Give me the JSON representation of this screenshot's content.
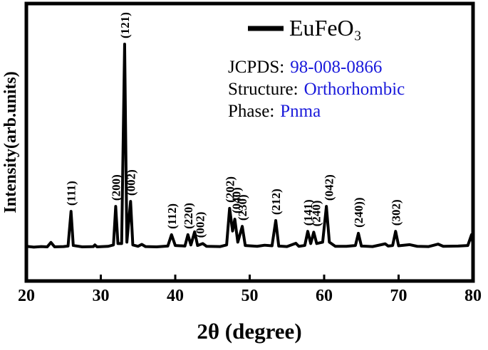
{
  "chart_data": {
    "type": "line",
    "x_label": "2θ (degree)",
    "y_label": "Intensity(arb.units)",
    "xlim": [
      20,
      80
    ],
    "ylim": [
      0,
      100
    ],
    "xticks": [
      20,
      30,
      40,
      50,
      60,
      70,
      80
    ],
    "x": [
      20.0,
      21.0,
      22.0,
      22.8,
      23.3,
      23.8,
      25.0,
      25.6,
      26.0,
      26.3,
      27.5,
      29.0,
      29.2,
      29.5,
      31.0,
      31.7,
      32.0,
      32.3,
      32.8,
      33.2,
      33.5,
      33.7,
      34.0,
      34.3,
      35.0,
      35.5,
      36.0,
      37.5,
      39.0,
      39.5,
      40.0,
      41.3,
      41.7,
      42.1,
      42.6,
      43.0,
      43.7,
      44.2,
      46.0,
      46.9,
      47.3,
      47.7,
      48.0,
      48.4,
      49.0,
      49.4,
      51.0,
      52.0,
      53.0,
      53.5,
      53.9,
      55.0,
      56.2,
      56.6,
      57.4,
      57.8,
      58.2,
      58.6,
      59.0,
      59.8,
      60.3,
      60.7,
      61.5,
      63.0,
      64.2,
      64.6,
      65.0,
      66.5,
      68.2,
      68.6,
      69.2,
      69.6,
      70.0,
      71.5,
      72.5,
      74.0,
      75.3,
      76.0,
      78.0,
      79.3,
      79.8,
      80.0
    ],
    "series": [
      {
        "name": "EuFeO₃",
        "color": "#000000",
        "values": [
          12.5,
          12.2,
          12.4,
          12.3,
          13.9,
          12.3,
          12.4,
          12.6,
          25.1,
          12.8,
          12.3,
          12.4,
          13.0,
          12.3,
          12.5,
          13.0,
          26.9,
          13.5,
          13.5,
          85.4,
          14.0,
          20.0,
          28.7,
          13.0,
          12.5,
          13.2,
          12.4,
          12.3,
          12.6,
          16.7,
          12.8,
          12.6,
          16.7,
          13.0,
          17.7,
          12.8,
          13.5,
          12.5,
          12.4,
          13.0,
          26.2,
          18.0,
          22.3,
          14.0,
          19.7,
          12.8,
          12.5,
          12.9,
          12.7,
          21.8,
          12.6,
          12.4,
          13.6,
          12.5,
          12.8,
          17.9,
          13.5,
          17.6,
          13.5,
          14.0,
          26.9,
          14.0,
          12.5,
          12.5,
          12.8,
          17.2,
          12.6,
          12.4,
          13.4,
          12.6,
          12.8,
          17.9,
          12.7,
          13.1,
          12.5,
          12.4,
          13.3,
          12.5,
          12.6,
          12.8,
          16.7,
          13.0
        ]
      }
    ],
    "annotations": [
      {
        "text": "(111)",
        "x": 26.0
      },
      {
        "text": "(200)",
        "x": 32.0
      },
      {
        "text": "(121)",
        "x": 33.2
      },
      {
        "text": "(002)",
        "x": 34.0
      },
      {
        "text": "(112)",
        "x": 39.5
      },
      {
        "text": "(220)",
        "x": 41.7
      },
      {
        "text": "(002)",
        "x": 43.3
      },
      {
        "text": "(202)",
        "x": 47.3
      },
      {
        "text": "(040)",
        "x": 48.2
      },
      {
        "text": "(230)",
        "x": 49.0
      },
      {
        "text": "(212)",
        "x": 53.5
      },
      {
        "text": "(141)",
        "x": 57.8
      },
      {
        "text": "(240)",
        "x": 58.9
      },
      {
        "text": "(042)",
        "x": 60.6
      },
      {
        "text": "(240))",
        "x": 64.6
      },
      {
        "text": "(302)",
        "x": 69.6
      }
    ],
    "info": [
      {
        "label": "JCPDS:",
        "value": "98-008-0866"
      },
      {
        "label": "Structure:",
        "value": "Orthorhombic"
      },
      {
        "label": "Phase:",
        "value": "Pnma"
      }
    ]
  }
}
